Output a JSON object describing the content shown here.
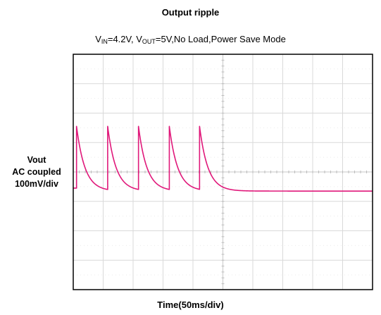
{
  "chart_data": {
    "type": "line",
    "title": "Output ripple",
    "conditions": {
      "vin_prefix": "V",
      "vin_sub": "IN",
      "vin_value": "=4.2V, ",
      "vout_prefix": "V",
      "vout_sub": "OUT",
      "vout_rest": "=5V,No Load,Power Save Mode"
    },
    "ylabel": {
      "line1": "Vout",
      "line2": "AC coupled",
      "line3": "100mV/div"
    },
    "xlabel": "Time(50ms/div)",
    "x_unit": "div",
    "y_unit": "div",
    "xlim": [
      0,
      10
    ],
    "ylim": [
      -4,
      4
    ],
    "grid": true,
    "color": "#e0187a",
    "pulse": {
      "rise_times_div": [
        0.11,
        1.15,
        2.18,
        3.21,
        4.22
      ],
      "peak_div": 1.55,
      "valley_div": -0.65,
      "start_level_div": -0.55,
      "decay_tau_div": 0.28
    }
  }
}
